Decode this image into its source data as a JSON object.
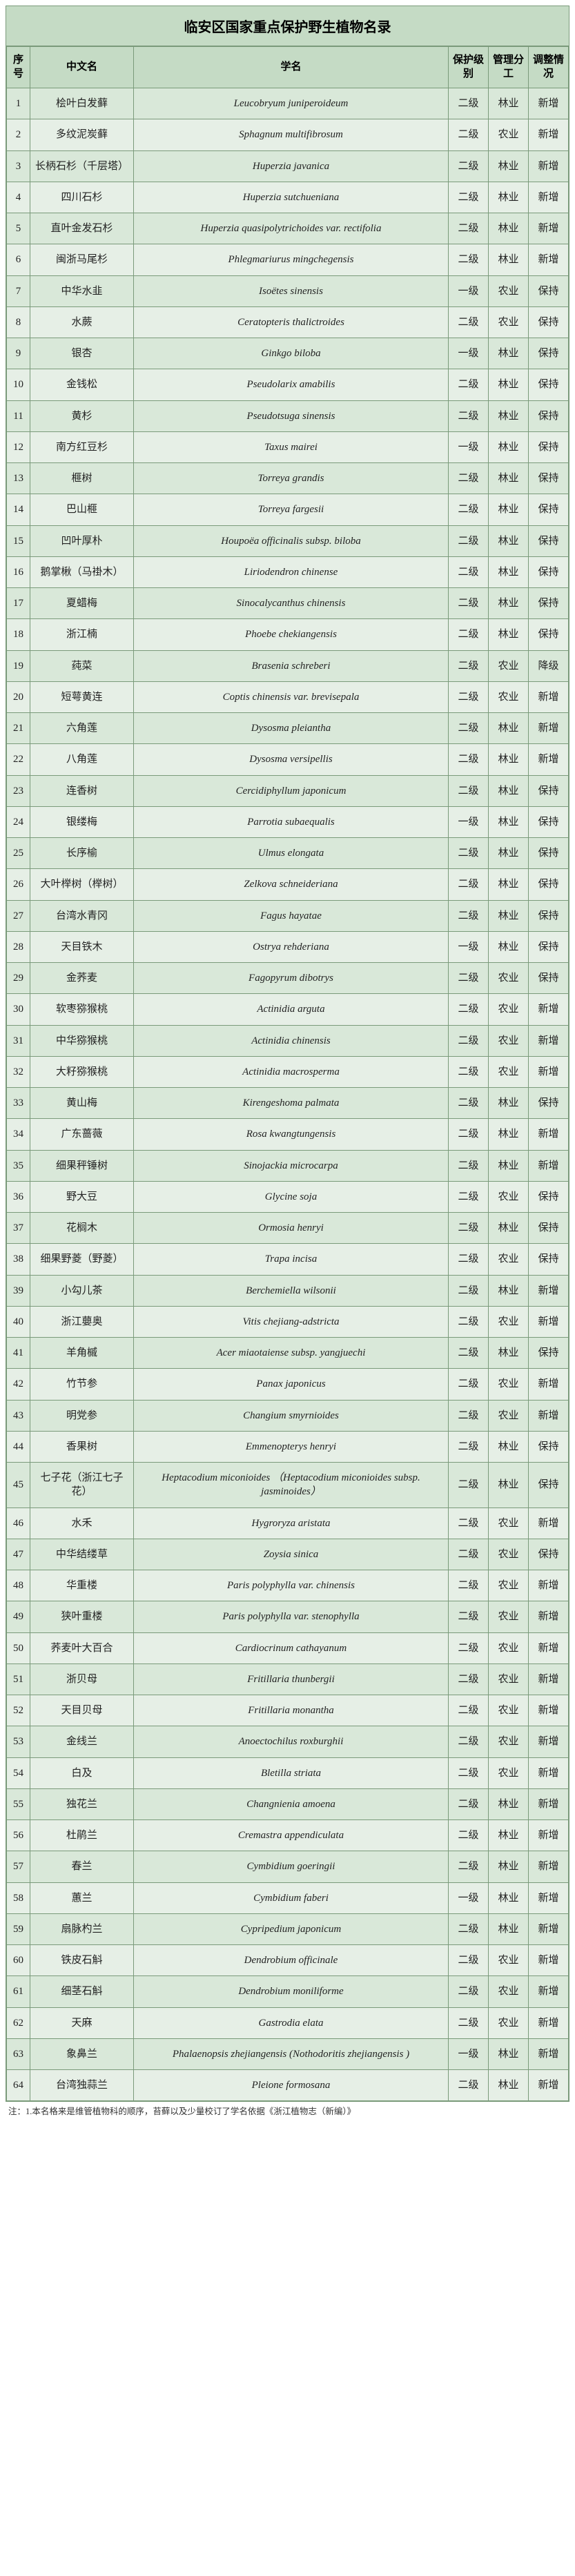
{
  "title": "临安区国家重点保护野生植物名录",
  "columns": {
    "idx": "序号",
    "cn": "中文名",
    "latin": "学名",
    "level": "保护级别",
    "mgmt": "管理分工",
    "adj": "调整情况"
  },
  "footnote": "注：1.本名格来是维管植物科的顺序，苔藓以及少量校订了学名依据《浙江植物志（新编）》",
  "rows": [
    {
      "idx": "1",
      "cn": "桧叶白发藓",
      "latin": "Leucobryum juniperoideum",
      "level": "二级",
      "mgmt": "林业",
      "adj": "新增"
    },
    {
      "idx": "2",
      "cn": "多纹泥炭藓",
      "latin": "Sphagnum multifibrosum",
      "level": "二级",
      "mgmt": "农业",
      "adj": "新增"
    },
    {
      "idx": "3",
      "cn": "长柄石杉（千层塔）",
      "latin": "Huperzia javanica",
      "level": "二级",
      "mgmt": "林业",
      "adj": "新增"
    },
    {
      "idx": "4",
      "cn": "四川石杉",
      "latin": "Huperzia sutchueniana",
      "level": "二级",
      "mgmt": "林业",
      "adj": "新增"
    },
    {
      "idx": "5",
      "cn": "直叶金发石杉",
      "latin": "Huperzia quasipolytrichoides  var. rectifolia",
      "level": "二级",
      "mgmt": "林业",
      "adj": "新增"
    },
    {
      "idx": "6",
      "cn": "闽浙马尾杉",
      "latin": "Phlegmariurus mingchegensis",
      "level": "二级",
      "mgmt": "林业",
      "adj": "新增"
    },
    {
      "idx": "7",
      "cn": "中华水韭",
      "latin": "Isoëtes sinensis",
      "level": "一级",
      "mgmt": "农业",
      "adj": "保持"
    },
    {
      "idx": "8",
      "cn": "水蕨",
      "latin": "Ceratopteris thalictroides",
      "level": "二级",
      "mgmt": "农业",
      "adj": "保持"
    },
    {
      "idx": "9",
      "cn": "银杏",
      "latin": "Ginkgo biloba",
      "level": "一级",
      "mgmt": "林业",
      "adj": "保持"
    },
    {
      "idx": "10",
      "cn": "金钱松",
      "latin": "Pseudolarix amabilis",
      "level": "二级",
      "mgmt": "林业",
      "adj": "保持"
    },
    {
      "idx": "11",
      "cn": "黄杉",
      "latin": "Pseudotsuga sinensis",
      "level": "二级",
      "mgmt": "林业",
      "adj": "保持"
    },
    {
      "idx": "12",
      "cn": "南方红豆杉",
      "latin": "Taxus mairei",
      "level": "一级",
      "mgmt": "林业",
      "adj": "保持"
    },
    {
      "idx": "13",
      "cn": "榧树",
      "latin": "Torreya grandis",
      "level": "二级",
      "mgmt": "林业",
      "adj": "保持"
    },
    {
      "idx": "14",
      "cn": "巴山榧",
      "latin": "Torreya fargesii",
      "level": "二级",
      "mgmt": "林业",
      "adj": "保持"
    },
    {
      "idx": "15",
      "cn": "凹叶厚朴",
      "latin": "Houpoëa officinalis  subsp. biloba",
      "level": "二级",
      "mgmt": "林业",
      "adj": "保持"
    },
    {
      "idx": "16",
      "cn": "鹅掌楸（马褂木）",
      "latin": "Liriodendron chinense",
      "level": "二级",
      "mgmt": "林业",
      "adj": "保持"
    },
    {
      "idx": "17",
      "cn": "夏蜡梅",
      "latin": "Sinocalycanthus chinensis",
      "level": "二级",
      "mgmt": "林业",
      "adj": "保持"
    },
    {
      "idx": "18",
      "cn": "浙江楠",
      "latin": "Phoebe chekiangensis",
      "level": "二级",
      "mgmt": "林业",
      "adj": "保持"
    },
    {
      "idx": "19",
      "cn": "莼菜",
      "latin": "Brasenia schreberi",
      "level": "二级",
      "mgmt": "农业",
      "adj": "降级"
    },
    {
      "idx": "20",
      "cn": "短萼黄连",
      "latin": "Coptis chinensis  var. brevisepala",
      "level": "二级",
      "mgmt": "农业",
      "adj": "新增"
    },
    {
      "idx": "21",
      "cn": "六角莲",
      "latin": "Dysosma pleiantha",
      "level": "二级",
      "mgmt": "林业",
      "adj": "新增"
    },
    {
      "idx": "22",
      "cn": "八角莲",
      "latin": "Dysosma versipellis",
      "level": "二级",
      "mgmt": "林业",
      "adj": "新增"
    },
    {
      "idx": "23",
      "cn": "连香树",
      "latin": "Cercidiphyllum japonicum",
      "level": "二级",
      "mgmt": "林业",
      "adj": "保持"
    },
    {
      "idx": "24",
      "cn": "银缕梅",
      "latin": "Parrotia subaequalis",
      "level": "一级",
      "mgmt": "林业",
      "adj": "保持"
    },
    {
      "idx": "25",
      "cn": "长序榆",
      "latin": "Ulmus elongata",
      "level": "二级",
      "mgmt": "林业",
      "adj": "保持"
    },
    {
      "idx": "26",
      "cn": "大叶榉树（榉树）",
      "latin": "Zelkova schneideriana",
      "level": "二级",
      "mgmt": "林业",
      "adj": "保持"
    },
    {
      "idx": "27",
      "cn": "台湾水青冈",
      "latin": "Fagus hayatae",
      "level": "二级",
      "mgmt": "林业",
      "adj": "保持"
    },
    {
      "idx": "28",
      "cn": "天目铁木",
      "latin": "Ostrya rehderiana",
      "level": "一级",
      "mgmt": "林业",
      "adj": "保持"
    },
    {
      "idx": "29",
      "cn": "金荞麦",
      "latin": "Fagopyrum dibotrys",
      "level": "二级",
      "mgmt": "农业",
      "adj": "保持"
    },
    {
      "idx": "30",
      "cn": "软枣猕猴桃",
      "latin": "Actinidia arguta",
      "level": "二级",
      "mgmt": "农业",
      "adj": "新增"
    },
    {
      "idx": "31",
      "cn": "中华猕猴桃",
      "latin": "Actinidia chinensis",
      "level": "二级",
      "mgmt": "农业",
      "adj": "新增"
    },
    {
      "idx": "32",
      "cn": "大籽猕猴桃",
      "latin": "Actinidia macrosperma",
      "level": "二级",
      "mgmt": "农业",
      "adj": "新增"
    },
    {
      "idx": "33",
      "cn": "黄山梅",
      "latin": "Kirengeshoma palmata",
      "level": "二级",
      "mgmt": "林业",
      "adj": "保持"
    },
    {
      "idx": "34",
      "cn": "广东蔷薇",
      "latin": "Rosa kwangtungensis",
      "level": "二级",
      "mgmt": "林业",
      "adj": "新增"
    },
    {
      "idx": "35",
      "cn": "细果秤锤树",
      "latin": "Sinojackia microcarpa",
      "level": "二级",
      "mgmt": "林业",
      "adj": "新增"
    },
    {
      "idx": "36",
      "cn": "野大豆",
      "latin": "Glycine soja",
      "level": "二级",
      "mgmt": "农业",
      "adj": "保持"
    },
    {
      "idx": "37",
      "cn": "花榈木",
      "latin": "Ormosia henryi",
      "level": "二级",
      "mgmt": "林业",
      "adj": "保持"
    },
    {
      "idx": "38",
      "cn": "细果野菱（野菱）",
      "latin": "Trapa incisa",
      "level": "二级",
      "mgmt": "农业",
      "adj": "保持"
    },
    {
      "idx": "39",
      "cn": "小勾儿茶",
      "latin": "Berchemiella wilsonii",
      "level": "二级",
      "mgmt": "林业",
      "adj": "新增"
    },
    {
      "idx": "40",
      "cn": "浙江蘡奥",
      "latin": "Vitis chejiang-adstricta",
      "level": "二级",
      "mgmt": "农业",
      "adj": "新增"
    },
    {
      "idx": "41",
      "cn": "羊角槭",
      "latin": "Acer miaotaiense subsp. yangjuechi",
      "level": "二级",
      "mgmt": "林业",
      "adj": "保持"
    },
    {
      "idx": "42",
      "cn": "竹节参",
      "latin": "Panax japonicus",
      "level": "二级",
      "mgmt": "农业",
      "adj": "新增"
    },
    {
      "idx": "43",
      "cn": "明党参",
      "latin": "Changium smyrnioides",
      "level": "二级",
      "mgmt": "农业",
      "adj": "新增"
    },
    {
      "idx": "44",
      "cn": "香果树",
      "latin": "Emmenopterys henryi",
      "level": "二级",
      "mgmt": "林业",
      "adj": "保持"
    },
    {
      "idx": "45",
      "cn": "七子花（浙江七子花）",
      "latin": "Heptacodium miconioides （Heptacodium miconioides  subsp. jasminoides）",
      "level": "二级",
      "mgmt": "林业",
      "adj": "保持"
    },
    {
      "idx": "46",
      "cn": "水禾",
      "latin": "Hygroryza aristata",
      "level": "二级",
      "mgmt": "农业",
      "adj": "新增"
    },
    {
      "idx": "47",
      "cn": "中华结缕草",
      "latin": "Zoysia sinica",
      "level": "二级",
      "mgmt": "农业",
      "adj": "保持"
    },
    {
      "idx": "48",
      "cn": "华重楼",
      "latin": "Paris polyphylla var. chinensis",
      "level": "二级",
      "mgmt": "农业",
      "adj": "新增"
    },
    {
      "idx": "49",
      "cn": "狭叶重楼",
      "latin": "Paris polyphylla var. stenophylla",
      "level": "二级",
      "mgmt": "农业",
      "adj": "新增"
    },
    {
      "idx": "50",
      "cn": "荞麦叶大百合",
      "latin": "Cardiocrinum cathayanum",
      "level": "二级",
      "mgmt": "农业",
      "adj": "新增"
    },
    {
      "idx": "51",
      "cn": "浙贝母",
      "latin": "Fritillaria thunbergii",
      "level": "二级",
      "mgmt": "农业",
      "adj": "新增"
    },
    {
      "idx": "52",
      "cn": "天目贝母",
      "latin": "Fritillaria monantha",
      "level": "二级",
      "mgmt": "农业",
      "adj": "新增"
    },
    {
      "idx": "53",
      "cn": "金线兰",
      "latin": "Anoectochilus roxburghii",
      "level": "二级",
      "mgmt": "农业",
      "adj": "新增"
    },
    {
      "idx": "54",
      "cn": "白及",
      "latin": "Bletilla striata",
      "level": "二级",
      "mgmt": "农业",
      "adj": "新增"
    },
    {
      "idx": "55",
      "cn": "独花兰",
      "latin": "Changnienia amoena",
      "level": "二级",
      "mgmt": "林业",
      "adj": "新增"
    },
    {
      "idx": "56",
      "cn": "杜鹃兰",
      "latin": "Cremastra appendiculata",
      "level": "二级",
      "mgmt": "林业",
      "adj": "新增"
    },
    {
      "idx": "57",
      "cn": "春兰",
      "latin": "Cymbidium goeringii",
      "level": "二级",
      "mgmt": "林业",
      "adj": "新增"
    },
    {
      "idx": "58",
      "cn": "蕙兰",
      "latin": "Cymbidium faberi",
      "level": "一级",
      "mgmt": "林业",
      "adj": "新增"
    },
    {
      "idx": "59",
      "cn": "扇脉杓兰",
      "latin": "Cypripedium japonicum",
      "level": "二级",
      "mgmt": "林业",
      "adj": "新增"
    },
    {
      "idx": "60",
      "cn": "铁皮石斛",
      "latin": "Dendrobium officinale",
      "level": "二级",
      "mgmt": "农业",
      "adj": "新增"
    },
    {
      "idx": "61",
      "cn": "细茎石斛",
      "latin": "Dendrobium moniliforme",
      "level": "二级",
      "mgmt": "农业",
      "adj": "新增"
    },
    {
      "idx": "62",
      "cn": "天麻",
      "latin": "Gastrodia elata",
      "level": "二级",
      "mgmt": "农业",
      "adj": "新增"
    },
    {
      "idx": "63",
      "cn": "象鼻兰",
      "latin": "Phalaenopsis zhejiangensis (Nothodoritis zhejiangensis )",
      "level": "一级",
      "mgmt": "林业",
      "adj": "新增"
    },
    {
      "idx": "64",
      "cn": "台湾独蒜兰",
      "latin": "Pleione formosana",
      "level": "二级",
      "mgmt": "林业",
      "adj": "新增"
    }
  ]
}
